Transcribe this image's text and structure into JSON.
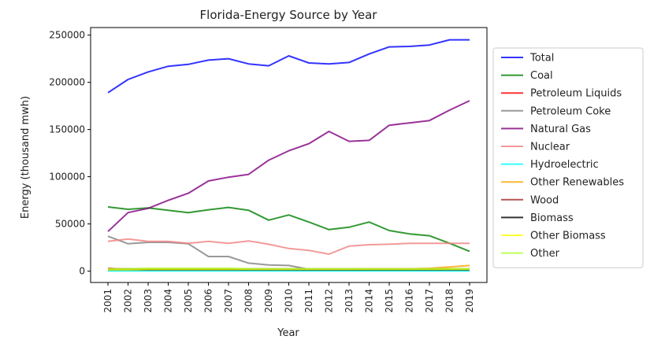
{
  "chart_data": {
    "type": "line",
    "title": "Florida-Energy Source by Year",
    "xlabel": "Year",
    "ylabel": "Energy (thousand mwh)",
    "x": [
      "2001",
      "2002",
      "2003",
      "2004",
      "2005",
      "2006",
      "2007",
      "2008",
      "2009",
      "2010",
      "2011",
      "2012",
      "2013",
      "2014",
      "2015",
      "2016",
      "2017",
      "2018",
      "2019"
    ],
    "ylim": [
      -12000,
      258000
    ],
    "yticks": [
      0,
      50000,
      100000,
      150000,
      200000,
      250000
    ],
    "ytick_labels": [
      "0",
      "50000",
      "100000",
      "150000",
      "200000",
      "250000"
    ],
    "legend_position": "right-outside",
    "grid": false,
    "series": [
      {
        "name": "Total",
        "color": "#0000ff",
        "values": [
          189000,
          203000,
          211000,
          217000,
          219000,
          223500,
          225000,
          219500,
          217500,
          228000,
          220500,
          219500,
          221000,
          230000,
          237500,
          238000,
          239500,
          245000,
          245000
        ]
      },
      {
        "name": "Coal",
        "color": "#008000",
        "values": [
          68000,
          65500,
          67000,
          64500,
          62000,
          65000,
          67500,
          64500,
          54000,
          59500,
          52000,
          44000,
          46500,
          52000,
          43000,
          39500,
          37500,
          29500,
          21000
        ]
      },
      {
        "name": "Petroleum Liquids",
        "color": "#ff0000",
        "values": [
          3000,
          2000,
          2000,
          2000,
          2000,
          2000,
          2000,
          1500,
          1500,
          1500,
          1000,
          1000,
          1000,
          1000,
          1000,
          1000,
          1000,
          1000,
          1000
        ]
      },
      {
        "name": "Petroleum Coke",
        "color": "#808080",
        "values": [
          37000,
          29000,
          30500,
          30500,
          29000,
          15500,
          15500,
          8500,
          6500,
          6000,
          2000,
          1500,
          1000,
          1000,
          1000,
          1000,
          1000,
          1000,
          1000
        ]
      },
      {
        "name": "Natural Gas",
        "color": "#800080",
        "values": [
          42000,
          62000,
          66500,
          75000,
          82500,
          95500,
          99500,
          102500,
          117500,
          127500,
          135000,
          148000,
          137500,
          138500,
          154500,
          157000,
          159500,
          170500,
          180500
        ]
      },
      {
        "name": "Nuclear",
        "color": "#f08080",
        "values": [
          31500,
          34000,
          31500,
          31500,
          29500,
          31500,
          29500,
          32000,
          28500,
          24000,
          22000,
          18000,
          26500,
          28000,
          28500,
          29500,
          29500,
          29500,
          29500
        ]
      },
      {
        "name": "Hydroelectric",
        "color": "#00ffff",
        "values": [
          200,
          200,
          200,
          200,
          200,
          200,
          200,
          200,
          200,
          200,
          200,
          200,
          200,
          200,
          200,
          200,
          200,
          200,
          200
        ]
      },
      {
        "name": "Other Renewables",
        "color": "#ffa500",
        "values": [
          2000,
          2000,
          2000,
          2000,
          2000,
          2000,
          2000,
          2000,
          2000,
          2000,
          2000,
          2000,
          2000,
          2500,
          2500,
          2500,
          3000,
          4500,
          6000
        ]
      },
      {
        "name": "Wood",
        "color": "#a52a2a",
        "values": [
          2500,
          2500,
          2500,
          2500,
          2500,
          2500,
          2500,
          2500,
          2500,
          2500,
          2500,
          2500,
          2500,
          2500,
          2500,
          2500,
          2500,
          2500,
          2500
        ]
      },
      {
        "name": "Biomass",
        "color": "#000000",
        "values": [
          1500,
          1500,
          1500,
          1500,
          1500,
          1500,
          1500,
          1500,
          1500,
          1500,
          1500,
          1500,
          1500,
          1500,
          1500,
          1500,
          1500,
          1500,
          1500
        ]
      },
      {
        "name": "Other Biomass",
        "color": "#ffff00",
        "values": [
          1500,
          1500,
          2000,
          2000,
          2000,
          2000,
          2000,
          2000,
          2000,
          2000,
          2000,
          2000,
          2000,
          2000,
          2000,
          2000,
          2000,
          2000,
          2000
        ]
      },
      {
        "name": "Other",
        "color": "#adff2f",
        "values": [
          2500,
          2500,
          3000,
          3000,
          3000,
          3000,
          3000,
          2500,
          2500,
          2500,
          2500,
          2500,
          2500,
          2500,
          2500,
          2500,
          2500,
          2500,
          2500
        ]
      }
    ]
  }
}
